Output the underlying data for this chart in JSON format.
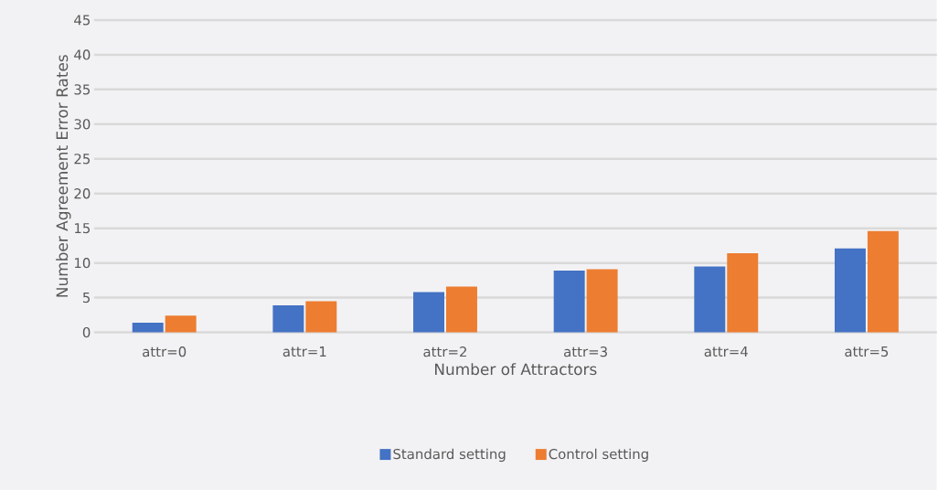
{
  "chart_data": {
    "type": "bar",
    "xlabel": "Number of Attractors",
    "ylabel": "Number Agreement Error Rates",
    "categories": [
      "attr=0",
      "attr=1",
      "attr=2",
      "attr=3",
      "attr=4",
      "attr=5"
    ],
    "series": [
      {
        "name": "Standard setting",
        "color": "#4472c4",
        "values": [
          1.4,
          3.9,
          5.8,
          8.9,
          9.5,
          12.1
        ]
      },
      {
        "name": "Control setting",
        "color": "#ed7d31",
        "values": [
          2.4,
          4.5,
          6.6,
          9.1,
          11.4,
          14.6
        ]
      }
    ],
    "ylim": [
      0,
      45
    ],
    "yticks": [
      0,
      5,
      10,
      15,
      20,
      25,
      30,
      35,
      40,
      45
    ],
    "grid": "y",
    "legend": "bottom"
  }
}
